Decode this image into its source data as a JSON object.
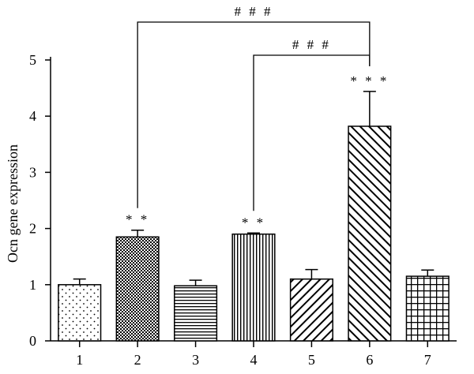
{
  "chart_data": {
    "type": "bar",
    "ylabel": "Ocn gene expression",
    "xlabel": "",
    "ylim": [
      0,
      5
    ],
    "yticks": [
      0,
      1,
      2,
      3,
      4,
      5
    ],
    "categories": [
      "1",
      "2",
      "3",
      "4",
      "5",
      "6",
      "7"
    ],
    "values": [
      1.0,
      1.85,
      0.98,
      1.9,
      1.1,
      3.82,
      1.15
    ],
    "errors": [
      0.1,
      0.12,
      0.1,
      0.02,
      0.17,
      0.62,
      0.11
    ],
    "patterns": [
      "dots",
      "checker",
      "hlines",
      "vlines",
      "diag-left",
      "diag-right",
      "grid"
    ],
    "stars": [
      "",
      "* *",
      "",
      "* *",
      "",
      "* * *",
      ""
    ],
    "comparisons": [
      {
        "from": "2",
        "to": "6",
        "label": "# # #"
      },
      {
        "from": "4",
        "to": "6",
        "label": "# # #"
      }
    ]
  }
}
